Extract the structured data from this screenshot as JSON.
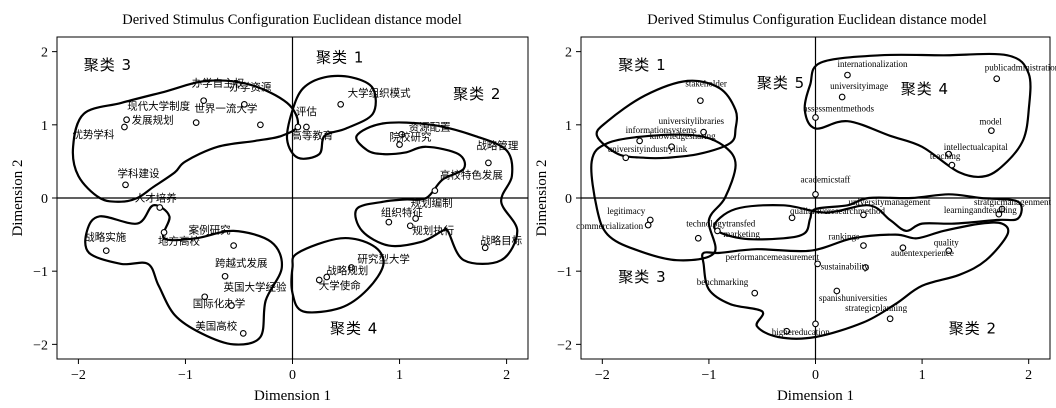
{
  "chart_data": [
    {
      "type": "scatter",
      "title": "Derived Stimulus Configuration Euclidean distance model",
      "xlabel": "Dimension  1",
      "ylabel": "Dimension  2",
      "xlim": [
        -2.2,
        2.2
      ],
      "ylim": [
        -2.2,
        2.2
      ],
      "xticks": [
        -2,
        -1,
        0,
        1,
        2
      ],
      "yticks": [
        -2,
        -1,
        0,
        1,
        2
      ],
      "grid": false,
      "points": [
        {
          "label": "办学自主权",
          "x": -0.83,
          "y": 1.33
        },
        {
          "label": "办学资源",
          "x": -0.45,
          "y": 1.28
        },
        {
          "label": "世界一流大学",
          "x": -0.3,
          "y": 1.0
        },
        {
          "label": "现代大学制度",
          "x": -0.9,
          "y": 1.03
        },
        {
          "label": "发展规划",
          "x": -1.55,
          "y": 1.07
        },
        {
          "label": "优势学科",
          "x": -1.57,
          "y": 0.97
        },
        {
          "label": "学科建设",
          "x": -1.56,
          "y": 0.18
        },
        {
          "label": "人才培养",
          "x": -1.24,
          "y": -0.13
        },
        {
          "label": "地方高校",
          "x": -1.2,
          "y": -0.47
        },
        {
          "label": "战略实施",
          "x": -1.74,
          "y": -0.72
        },
        {
          "label": "案例研究",
          "x": -0.55,
          "y": -0.65
        },
        {
          "label": "跨越式发展",
          "x": -0.63,
          "y": -1.07
        },
        {
          "label": "国际化办学",
          "x": -0.82,
          "y": -1.35
        },
        {
          "label": "英国大学经验",
          "x": -0.57,
          "y": -1.47
        },
        {
          "label": "美国高校",
          "x": -0.46,
          "y": -1.85
        },
        {
          "label": "评估",
          "x": 0.05,
          "y": 0.97
        },
        {
          "label": "大学组织模式",
          "x": 0.45,
          "y": 1.28
        },
        {
          "label": "高等教育",
          "x": 0.13,
          "y": 0.97
        },
        {
          "label": "资源配置",
          "x": 1.02,
          "y": 0.87
        },
        {
          "label": "院校研究",
          "x": 1.0,
          "y": 0.73
        },
        {
          "label": "战略管理",
          "x": 1.83,
          "y": 0.48
        },
        {
          "label": "高校特色发展",
          "x": 1.33,
          "y": 0.1
        },
        {
          "label": "组织特征",
          "x": 0.9,
          "y": -0.33
        },
        {
          "label": "规划编制",
          "x": 1.15,
          "y": -0.28
        },
        {
          "label": "规划执行",
          "x": 1.1,
          "y": -0.38
        },
        {
          "label": "战略目标",
          "x": 1.8,
          "y": -0.68
        },
        {
          "label": "研究型大学",
          "x": 0.55,
          "y": -0.95
        },
        {
          "label": "战略规划",
          "x": 0.25,
          "y": -1.12
        },
        {
          "label": "大学使命",
          "x": 0.32,
          "y": -1.08
        }
      ],
      "clusters": [
        {
          "name": "聚类 3"
        },
        {
          "name": "聚类 1"
        },
        {
          "name": "聚类 2"
        },
        {
          "name": "聚类 4"
        }
      ]
    },
    {
      "type": "scatter",
      "title": "Derived Stimulus Configuration Euclidean distance model",
      "xlabel": "Dimension  1",
      "ylabel": "Dimension  2",
      "xlim": [
        -2.2,
        2.2
      ],
      "ylim": [
        -2.2,
        2.2
      ],
      "xticks": [
        -2,
        -1,
        0,
        1,
        2
      ],
      "yticks": [
        -2,
        -1,
        0,
        1,
        2
      ],
      "grid": false,
      "points": [
        {
          "label": "stakeholder",
          "x": -1.08,
          "y": 1.33
        },
        {
          "label": "informationsystems",
          "x": -1.65,
          "y": 0.78
        },
        {
          "label": "universitylibraries",
          "x": -1.05,
          "y": 0.9
        },
        {
          "label": "knowledgesharing",
          "x": -1.35,
          "y": 0.7
        },
        {
          "label": "universityindustrylink",
          "x": -1.78,
          "y": 0.55
        },
        {
          "label": "legitimacy",
          "x": -1.55,
          "y": -0.3
        },
        {
          "label": "commercialization",
          "x": -1.57,
          "y": -0.37
        },
        {
          "label": "technologytransfed",
          "x": -1.1,
          "y": -0.55
        },
        {
          "label": "marketing",
          "x": -0.92,
          "y": -0.45
        },
        {
          "label": "qualitativeresearchmethod",
          "x": -0.22,
          "y": -0.27
        },
        {
          "label": "internationalization",
          "x": 0.3,
          "y": 1.68
        },
        {
          "label": "universityimage",
          "x": 0.25,
          "y": 1.38
        },
        {
          "label": "assessmentmethods",
          "x": 0.0,
          "y": 1.1
        },
        {
          "label": "publicadministration",
          "x": 1.7,
          "y": 1.63
        },
        {
          "label": "model",
          "x": 1.65,
          "y": 0.92
        },
        {
          "label": "intellectualcapital",
          "x": 1.25,
          "y": 0.6
        },
        {
          "label": "teaching",
          "x": 1.28,
          "y": 0.45
        },
        {
          "label": "academicstaff",
          "x": 0.0,
          "y": 0.05
        },
        {
          "label": "universitymanagement",
          "x": 0.45,
          "y": -0.23
        },
        {
          "label": "stratgicmanagenment",
          "x": 1.75,
          "y": -0.15
        },
        {
          "label": "learningandteaching",
          "x": 1.72,
          "y": -0.22
        },
        {
          "label": "rankings",
          "x": 0.45,
          "y": -0.65
        },
        {
          "label": "quality",
          "x": 1.25,
          "y": -0.72
        },
        {
          "label": "audentexperience",
          "x": 0.82,
          "y": -0.68
        },
        {
          "label": "performancemeasurement",
          "x": 0.02,
          "y": -0.9
        },
        {
          "label": "sustainability",
          "x": 0.47,
          "y": -0.95
        },
        {
          "label": "benchmarking",
          "x": -0.57,
          "y": -1.3
        },
        {
          "label": "spanishuniversities",
          "x": 0.2,
          "y": -1.27
        },
        {
          "label": "strategicplanning",
          "x": 0.7,
          "y": -1.65
        },
        {
          "label": "highereducation",
          "x": -0.27,
          "y": -1.82
        },
        {
          "label": "",
          "x": 0.0,
          "y": -1.72
        }
      ],
      "clusters": [
        {
          "name": "聚类 1"
        },
        {
          "name": "聚类 5"
        },
        {
          "name": "聚类 4"
        },
        {
          "name": "聚类 3"
        },
        {
          "name": "聚类 2"
        }
      ]
    }
  ]
}
